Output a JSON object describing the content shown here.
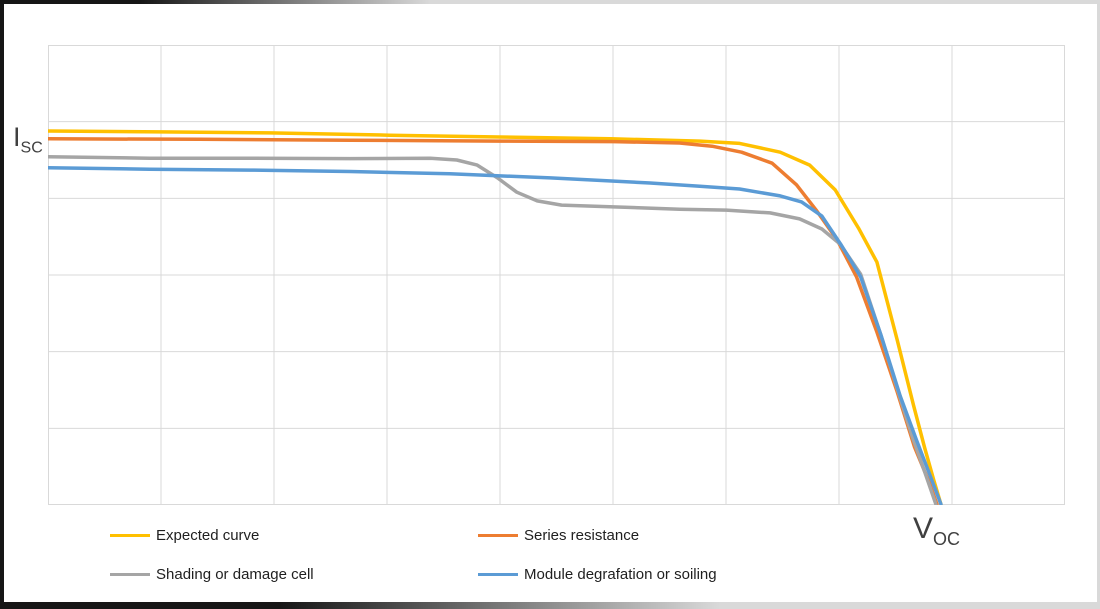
{
  "chart_data": {
    "type": "line",
    "title": "",
    "xlabel": {
      "main": "V",
      "sub": "OC"
    },
    "ylabel": {
      "main": "I",
      "sub": "SC"
    },
    "x_axis": {
      "min": 0,
      "max": 1,
      "gridline_count": 10,
      "numeric_labels": false
    },
    "y_axis": {
      "min": 0,
      "max": 1,
      "gridline_count": 7,
      "numeric_labels": false
    },
    "grid_on": true,
    "grid_color": "#d9d9d9",
    "plot_border_color": "#d9d9d9",
    "legend_position": "bottom",
    "series": [
      {
        "name": "Expected curve",
        "color": "#FFC000",
        "points": [
          [
            0.0,
            0.813
          ],
          [
            0.11,
            0.811
          ],
          [
            0.218,
            0.809
          ],
          [
            0.336,
            0.804
          ],
          [
            0.444,
            0.8
          ],
          [
            0.553,
            0.796
          ],
          [
            0.641,
            0.791
          ],
          [
            0.68,
            0.786
          ],
          [
            0.72,
            0.767
          ],
          [
            0.749,
            0.739
          ],
          [
            0.774,
            0.685
          ],
          [
            0.797,
            0.602
          ],
          [
            0.815,
            0.528
          ],
          [
            0.835,
            0.359
          ],
          [
            0.851,
            0.217
          ],
          [
            0.862,
            0.124
          ],
          [
            0.871,
            0.054
          ],
          [
            0.878,
            0.002
          ]
        ]
      },
      {
        "name": "Series resistance",
        "color": "#ED7D31",
        "points": [
          [
            0.0,
            0.796
          ],
          [
            0.149,
            0.795
          ],
          [
            0.297,
            0.793
          ],
          [
            0.444,
            0.791
          ],
          [
            0.556,
            0.79
          ],
          [
            0.621,
            0.787
          ],
          [
            0.653,
            0.78
          ],
          [
            0.682,
            0.767
          ],
          [
            0.712,
            0.743
          ],
          [
            0.736,
            0.696
          ],
          [
            0.756,
            0.639
          ],
          [
            0.776,
            0.576
          ],
          [
            0.795,
            0.496
          ],
          [
            0.815,
            0.376
          ],
          [
            0.835,
            0.246
          ],
          [
            0.852,
            0.126
          ],
          [
            0.866,
            0.052
          ],
          [
            0.874,
            0.002
          ]
        ]
      },
      {
        "name": "Shading or damage cell",
        "color": "#A5A5A5",
        "points": [
          [
            0.0,
            0.757
          ],
          [
            0.1,
            0.754
          ],
          [
            0.199,
            0.754
          ],
          [
            0.297,
            0.753
          ],
          [
            0.376,
            0.754
          ],
          [
            0.402,
            0.75
          ],
          [
            0.422,
            0.739
          ],
          [
            0.442,
            0.711
          ],
          [
            0.461,
            0.68
          ],
          [
            0.481,
            0.661
          ],
          [
            0.505,
            0.652
          ],
          [
            0.556,
            0.648
          ],
          [
            0.621,
            0.643
          ],
          [
            0.667,
            0.641
          ],
          [
            0.71,
            0.635
          ],
          [
            0.739,
            0.622
          ],
          [
            0.761,
            0.6
          ],
          [
            0.779,
            0.567
          ],
          [
            0.799,
            0.502
          ],
          [
            0.818,
            0.376
          ],
          [
            0.836,
            0.246
          ],
          [
            0.85,
            0.148
          ],
          [
            0.862,
            0.072
          ],
          [
            0.873,
            0.002
          ]
        ]
      },
      {
        "name": "Module degrafation or soiling",
        "color": "#5B9BD5",
        "points": [
          [
            0.0,
            0.733
          ],
          [
            0.1,
            0.73
          ],
          [
            0.199,
            0.728
          ],
          [
            0.297,
            0.725
          ],
          [
            0.395,
            0.72
          ],
          [
            0.494,
            0.711
          ],
          [
            0.592,
            0.7
          ],
          [
            0.641,
            0.693
          ],
          [
            0.68,
            0.687
          ],
          [
            0.72,
            0.672
          ],
          [
            0.741,
            0.659
          ],
          [
            0.761,
            0.628
          ],
          [
            0.78,
            0.565
          ],
          [
            0.799,
            0.496
          ],
          [
            0.819,
            0.37
          ],
          [
            0.838,
            0.237
          ],
          [
            0.854,
            0.141
          ],
          [
            0.866,
            0.072
          ],
          [
            0.878,
            0.002
          ]
        ]
      }
    ]
  }
}
